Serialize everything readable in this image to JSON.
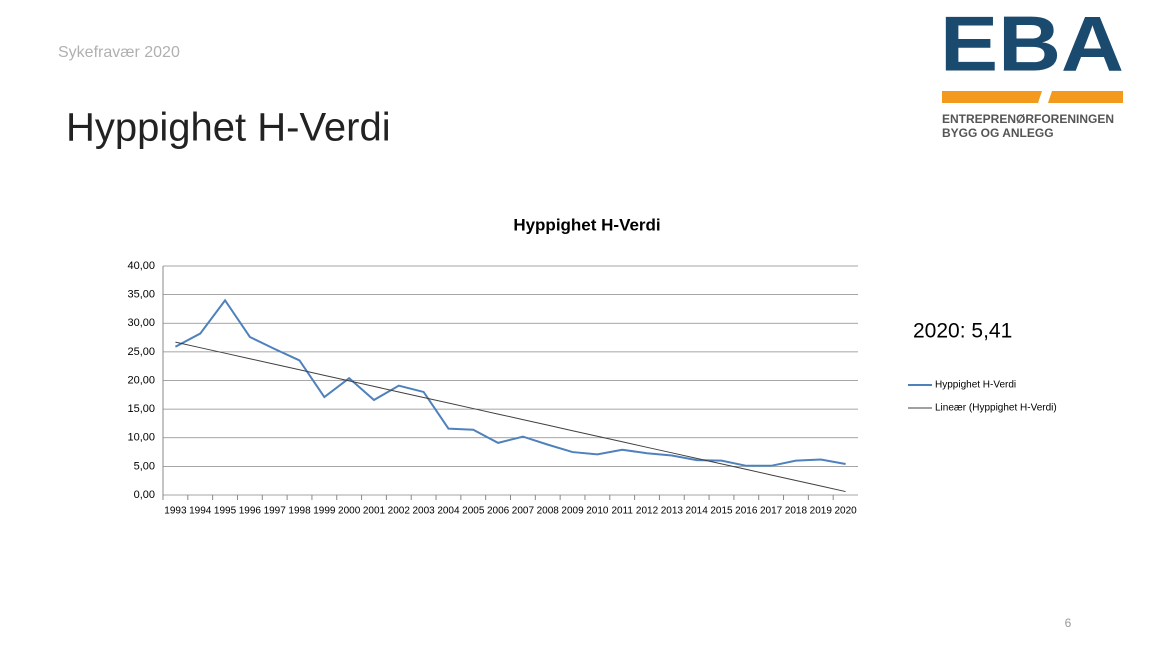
{
  "slide": {
    "subtitle": "Sykefravær 2020",
    "heading": "Hyppighet H-Verdi",
    "logo": {
      "mark": "EBA",
      "line1": "ENTREPRENØRFORENINGEN",
      "line2": "BYGG OG ANLEGG"
    },
    "page_number": 6
  },
  "chart_data": {
    "type": "line",
    "title": "Hyppighet H-Verdi",
    "categories": [
      "1993",
      "1994",
      "1995",
      "1996",
      "1997",
      "1998",
      "1999",
      "2000",
      "2001",
      "2002",
      "2003",
      "2004",
      "2005",
      "2006",
      "2007",
      "2008",
      "2009",
      "2010",
      "2011",
      "2012",
      "2013",
      "2014",
      "2015",
      "2016",
      "2017",
      "2018",
      "2019",
      "2020"
    ],
    "series": [
      {
        "name": "Hyppighet H-Verdi",
        "color": "#4f81bd",
        "values": [
          25.9,
          28.2,
          34.0,
          27.6,
          25.5,
          23.5,
          17.1,
          20.4,
          16.6,
          19.1,
          18.0,
          11.6,
          11.4,
          9.1,
          10.2,
          8.8,
          7.5,
          7.1,
          7.9,
          7.3,
          6.9,
          6.1,
          6.0,
          5.1,
          5.1,
          6.0,
          6.2,
          5.41
        ]
      },
      {
        "name": "Lineær (Hyppighet H-Verdi)",
        "color": "#404040",
        "values": [
          26.7,
          25.73,
          24.77,
          23.8,
          22.83,
          21.87,
          20.9,
          19.93,
          18.97,
          18.0,
          17.03,
          16.07,
          15.1,
          14.13,
          13.17,
          12.2,
          11.23,
          10.27,
          9.3,
          8.33,
          7.37,
          6.4,
          5.43,
          4.47,
          3.5,
          2.53,
          1.57,
          0.6
        ]
      }
    ],
    "ylim": [
      0,
      40
    ],
    "yticks": [
      {
        "value": 0,
        "label": "0,00"
      },
      {
        "value": 5,
        "label": "5,00"
      },
      {
        "value": 10,
        "label": "10,00"
      },
      {
        "value": 15,
        "label": "15,00"
      },
      {
        "value": 20,
        "label": "20,00"
      },
      {
        "value": 25,
        "label": "25,00"
      },
      {
        "value": 30,
        "label": "30,00"
      },
      {
        "value": 35,
        "label": "35,00"
      },
      {
        "value": 40,
        "label": "40,00"
      }
    ],
    "grid": true,
    "legend": "right",
    "annotation": "2020: 5,41"
  }
}
